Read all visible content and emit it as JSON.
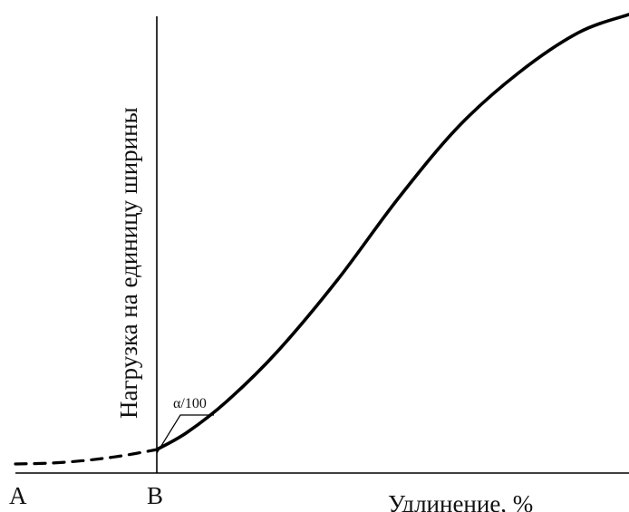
{
  "chart_data": {
    "type": "line",
    "title": "",
    "xlabel": "Удлинение, %",
    "ylabel": "Нагрузка на единицу ширины",
    "grid": false,
    "legend": "none",
    "points": {
      "A": "A",
      "B": "B"
    },
    "annotation": "α/100",
    "series": [
      {
        "style": "dashed",
        "segment": "A-B",
        "x": [
          0.0,
          0.25,
          0.5,
          0.75,
          1.0
        ],
        "y": [
          0.0,
          0.002,
          0.008,
          0.018,
          0.032
        ]
      },
      {
        "style": "solid",
        "segment": "B-end",
        "x": [
          1.0,
          1.15,
          1.35,
          1.6,
          1.9,
          2.2,
          2.5,
          2.8,
          3.1,
          3.35
        ],
        "y": [
          0.032,
          0.07,
          0.14,
          0.25,
          0.41,
          0.59,
          0.75,
          0.87,
          0.96,
          1.0
        ]
      }
    ],
    "xlim": [
      0.0,
      3.35
    ],
    "ylim": [
      0.0,
      1.0
    ]
  },
  "colors": {
    "line": "#000000",
    "background": "#ffffff"
  }
}
